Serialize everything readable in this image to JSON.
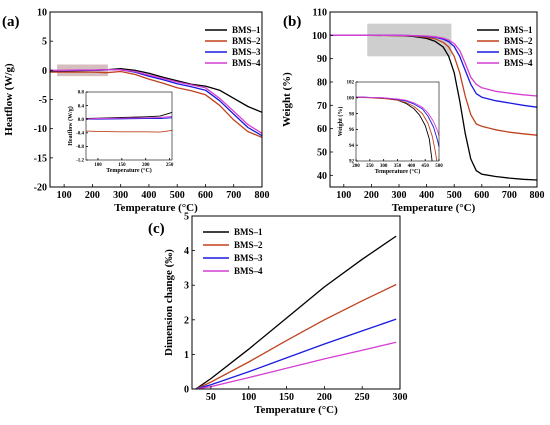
{
  "colors": {
    "BMS-1": "#000000",
    "BMS-2": "#c0421f",
    "BMS-3": "#1a1ae0",
    "BMS-4": "#d43fd4",
    "shade": "#c8a8a8",
    "shade_b": "#bdbdbd"
  },
  "chart_data": [
    {
      "id": "a",
      "panel_label": "(a)",
      "type": "line",
      "xlabel": "Temperature (°C)",
      "ylabel": "Heatflow (W/g)",
      "xlim": [
        50,
        800
      ],
      "ylim": [
        -20,
        10
      ],
      "xticks": [
        100,
        200,
        300,
        400,
        500,
        600,
        700,
        800
      ],
      "yticks": [
        -20,
        -15,
        -10,
        -5,
        0,
        5,
        10
      ],
      "legend": "top-right",
      "grid": false,
      "highlight": {
        "x": [
          75,
          255
        ],
        "y": [
          -1,
          1
        ]
      },
      "series": [
        {
          "name": "BMS-1",
          "x": [
            50,
            100,
            150,
            200,
            250,
            300,
            350,
            400,
            450,
            500,
            550,
            600,
            650,
            700,
            750,
            800
          ],
          "y": [
            -0.1,
            -0.1,
            -0.05,
            0,
            0.1,
            0.3,
            0,
            -0.5,
            -1.2,
            -1.8,
            -2.4,
            -2.7,
            -3.4,
            -4.8,
            -6.2,
            -7.2
          ]
        },
        {
          "name": "BMS-2",
          "x": [
            50,
            100,
            150,
            200,
            250,
            300,
            350,
            400,
            450,
            500,
            550,
            600,
            650,
            700,
            750,
            800
          ],
          "y": [
            -0.3,
            -0.3,
            -0.3,
            -0.3,
            -0.4,
            -0.2,
            -0.7,
            -1.5,
            -2.2,
            -3.0,
            -3.5,
            -4.2,
            -6.0,
            -8.5,
            -10.5,
            -11.5
          ]
        },
        {
          "name": "BMS-3",
          "x": [
            50,
            100,
            150,
            200,
            250,
            300,
            350,
            400,
            450,
            500,
            550,
            600,
            650,
            700,
            750,
            800
          ],
          "y": [
            -0.05,
            -0.05,
            0,
            0,
            0.1,
            0.1,
            -0.3,
            -1.0,
            -1.6,
            -2.3,
            -2.8,
            -3.4,
            -5.2,
            -7.5,
            -9.8,
            -11.2
          ]
        },
        {
          "name": "BMS-4",
          "x": [
            50,
            100,
            150,
            200,
            250,
            300,
            350,
            400,
            450,
            500,
            550,
            600,
            650,
            700,
            750,
            800
          ],
          "y": [
            0,
            0,
            0.05,
            0.05,
            0.1,
            0.1,
            -0.2,
            -0.8,
            -1.4,
            -2.0,
            -2.5,
            -3.0,
            -4.8,
            -7.0,
            -9.3,
            -10.8
          ]
        }
      ],
      "inset": {
        "xlabel": "Temperature (°C)",
        "ylabel": "Heatflow (W/g)",
        "xlim": [
          75,
          255
        ],
        "ylim": [
          -1.2,
          0.8
        ],
        "xticks": [
          100,
          150,
          200,
          250
        ],
        "yticks": [
          -1.2,
          -0.8,
          -0.4,
          0.0,
          0.4,
          0.8
        ],
        "ytick_labels": [
          "-1.2",
          "-0.8",
          "-0.4",
          "0.0",
          "0.4",
          "0.8"
        ],
        "series": [
          {
            "name": "BMS-1",
            "x": [
              75,
              100,
              150,
              200,
              230,
              255
            ],
            "y": [
              0.02,
              0.03,
              0.05,
              0.07,
              0.09,
              0.2
            ]
          },
          {
            "name": "BMS-2",
            "x": [
              75,
              100,
              150,
              200,
              230,
              255
            ],
            "y": [
              -0.35,
              -0.36,
              -0.37,
              -0.37,
              -0.38,
              -0.33
            ]
          },
          {
            "name": "BMS-3",
            "x": [
              75,
              100,
              150,
              200,
              230,
              255
            ],
            "y": [
              0,
              0,
              0.01,
              0.02,
              0.02,
              0.04
            ]
          },
          {
            "name": "BMS-4",
            "x": [
              75,
              100,
              150,
              200,
              230,
              255
            ],
            "y": [
              0.01,
              0.02,
              0.03,
              0.04,
              0.05,
              0.08
            ]
          }
        ]
      }
    },
    {
      "id": "b",
      "panel_label": "(b)",
      "type": "line",
      "xlabel": "Temperature (°C)",
      "ylabel": "Weight (%)",
      "xlim": [
        50,
        800
      ],
      "ylim": [
        35,
        110
      ],
      "xticks": [
        100,
        200,
        300,
        400,
        500,
        600,
        700,
        800
      ],
      "yticks": [
        40,
        50,
        60,
        70,
        80,
        90,
        100,
        110
      ],
      "legend": "top-right",
      "grid": false,
      "highlight": {
        "x": [
          185,
          490
        ],
        "y": [
          91,
          105
        ]
      },
      "series": [
        {
          "name": "BMS-1",
          "x": [
            50,
            100,
            200,
            300,
            350,
            400,
            430,
            460,
            480,
            500,
            520,
            540,
            560,
            580,
            600,
            650,
            700,
            750,
            800
          ],
          "y": [
            100,
            100,
            100,
            99.9,
            99.6,
            98.7,
            97.5,
            95,
            91,
            84,
            72,
            58,
            47,
            42,
            40.5,
            39.5,
            38.8,
            38.3,
            38
          ]
        },
        {
          "name": "BMS-2",
          "x": [
            50,
            100,
            200,
            300,
            350,
            400,
            430,
            460,
            480,
            500,
            520,
            540,
            560,
            580,
            600,
            650,
            700,
            750,
            800
          ],
          "y": [
            100,
            100,
            100,
            99.9,
            99.7,
            99.2,
            98.5,
            97,
            95,
            91,
            84,
            74,
            66,
            62,
            61,
            59.5,
            58.5,
            57.8,
            57.2
          ]
        },
        {
          "name": "BMS-3",
          "x": [
            50,
            100,
            200,
            300,
            350,
            400,
            430,
            460,
            480,
            500,
            520,
            540,
            560,
            580,
            600,
            650,
            700,
            750,
            800
          ],
          "y": [
            100,
            100,
            100,
            100,
            99.9,
            99.6,
            99.2,
            98.4,
            97.3,
            95.2,
            91,
            85,
            79,
            75,
            73.5,
            72,
            71,
            70,
            69.2
          ]
        },
        {
          "name": "BMS-4",
          "x": [
            50,
            100,
            200,
            300,
            350,
            400,
            430,
            460,
            480,
            500,
            520,
            540,
            560,
            580,
            600,
            650,
            700,
            750,
            800
          ],
          "y": [
            100,
            100,
            100,
            100,
            99.9,
            99.7,
            99.4,
            98.8,
            98,
            96.5,
            93.5,
            88,
            82,
            79,
            77.5,
            76,
            75.2,
            74.5,
            74
          ]
        }
      ],
      "inset": {
        "xlabel": "Temperature (°C)",
        "ylabel": "Weight (%)",
        "xlim": [
          200,
          500
        ],
        "ylim": [
          92,
          102
        ],
        "xticks": [
          200,
          250,
          300,
          350,
          400,
          450,
          500
        ],
        "yticks": [
          92,
          94,
          96,
          98,
          100,
          102
        ],
        "ytick_labels": [
          "92",
          "94",
          "96",
          "98",
          "100",
          "102"
        ],
        "series": [
          {
            "name": "BMS-1",
            "x": [
              200,
              250,
              300,
              350,
              380,
              410,
              430,
              450,
              465,
              475
            ],
            "y": [
              100.1,
              100.05,
              99.95,
              99.7,
              99.3,
              98.6,
              97.8,
              96.5,
              94.8,
              92
            ]
          },
          {
            "name": "BMS-2",
            "x": [
              200,
              250,
              300,
              350,
              380,
              410,
              440,
              460,
              475,
              485,
              492
            ],
            "y": [
              100.05,
              100.0,
              99.9,
              99.7,
              99.4,
              98.9,
              98.0,
              96.8,
              95.2,
              93.5,
              92
            ]
          },
          {
            "name": "BMS-3",
            "x": [
              200,
              250,
              300,
              350,
              380,
              410,
              440,
              460,
              480,
              495,
              500
            ],
            "y": [
              100.1,
              100.05,
              100.0,
              99.8,
              99.6,
              99.2,
              98.6,
              97.7,
              96.3,
              94.6,
              93.8
            ]
          },
          {
            "name": "BMS-4",
            "x": [
              200,
              250,
              300,
              350,
              380,
              410,
              440,
              460,
              480,
              495,
              500
            ],
            "y": [
              100.1,
              100.05,
              100.0,
              99.85,
              99.7,
              99.35,
              98.8,
              98.1,
              97.0,
              95.8,
              95.2
            ]
          }
        ]
      }
    },
    {
      "id": "c",
      "panel_label": "(c)",
      "type": "line",
      "xlabel": "Temperature (°C)",
      "ylabel": "Dimension change (‰)",
      "xlim": [
        25,
        300
      ],
      "ylim": [
        0,
        5
      ],
      "xticks": [
        50,
        100,
        150,
        200,
        250,
        300
      ],
      "yticks": [
        0,
        1,
        2,
        3,
        4,
        5
      ],
      "legend": "top-left",
      "grid": false,
      "series": [
        {
          "name": "BMS-1",
          "x": [
            30,
            50,
            100,
            150,
            200,
            250,
            295
          ],
          "y": [
            0,
            0.3,
            1.15,
            2.05,
            2.95,
            3.75,
            4.42
          ]
        },
        {
          "name": "BMS-2",
          "x": [
            30,
            50,
            100,
            150,
            200,
            250,
            295
          ],
          "y": [
            0,
            0.2,
            0.78,
            1.4,
            2.0,
            2.55,
            3.02
          ]
        },
        {
          "name": "BMS-3",
          "x": [
            30,
            50,
            100,
            150,
            200,
            250,
            295
          ],
          "y": [
            0,
            0.12,
            0.5,
            0.9,
            1.3,
            1.68,
            2.02
          ]
        },
        {
          "name": "BMS-4",
          "x": [
            30,
            50,
            100,
            150,
            200,
            250,
            295
          ],
          "y": [
            0,
            0.07,
            0.33,
            0.6,
            0.87,
            1.12,
            1.35
          ]
        }
      ]
    }
  ]
}
